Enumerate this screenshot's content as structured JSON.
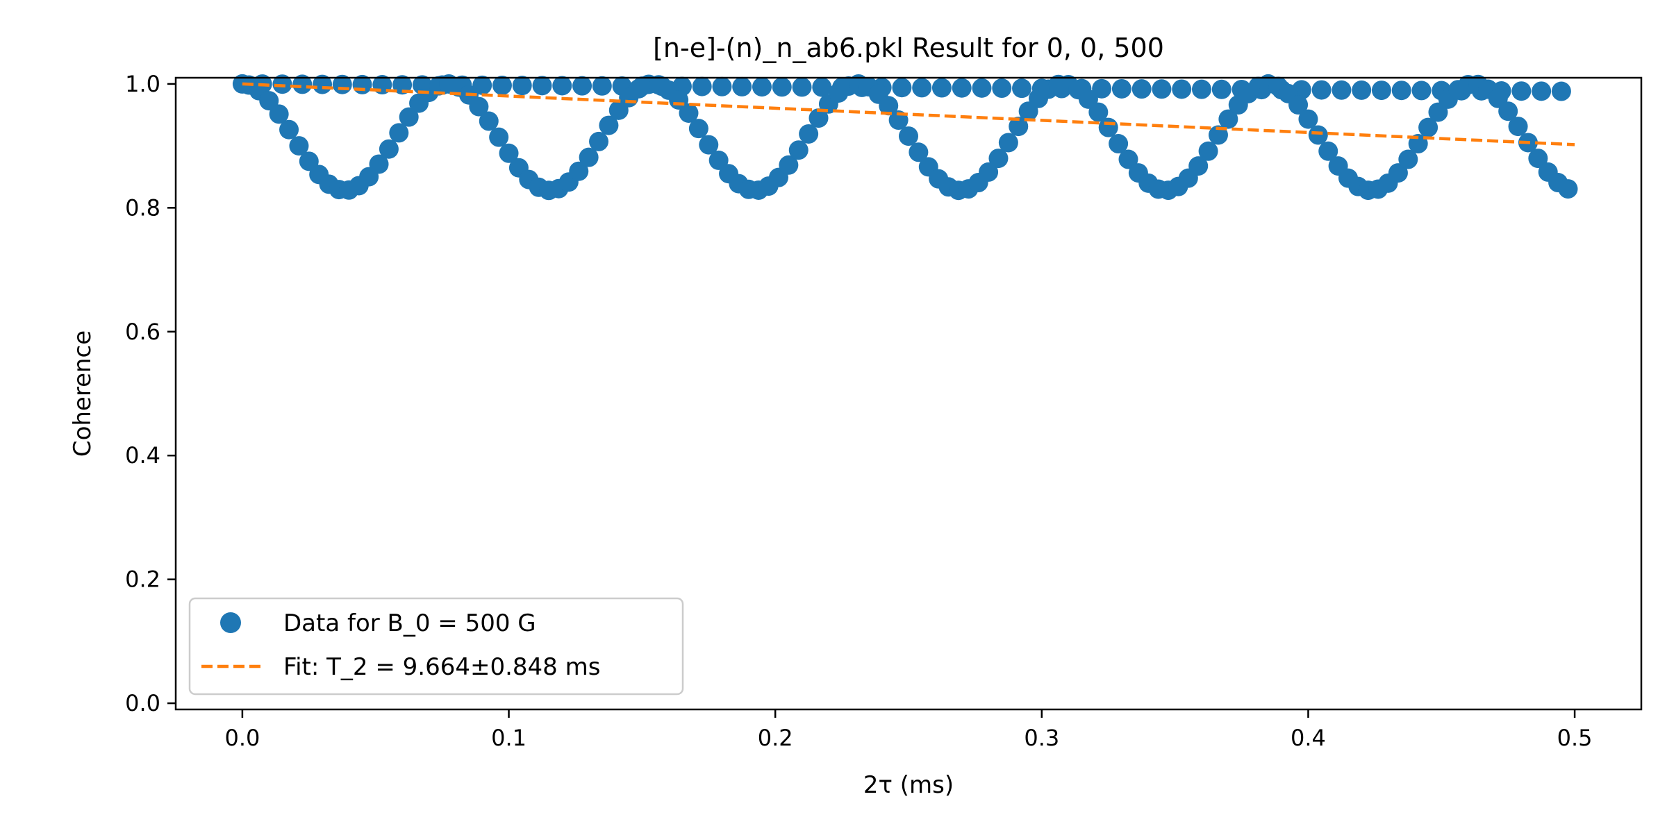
{
  "chart_data": {
    "type": "scatter",
    "title": "[n-e]-(n)_n_ab6.pkl Result for 0, 0, 500",
    "xlabel": "2τ (ms)",
    "ylabel": "Coherence",
    "xlim": [
      -0.025,
      0.525
    ],
    "ylim": [
      -0.01,
      1.01
    ],
    "xticks": [
      "0.0",
      "0.1",
      "0.2",
      "0.3",
      "0.4",
      "0.5"
    ],
    "yticks": [
      "0.0",
      "0.2",
      "0.4",
      "0.6",
      "0.8",
      "1.0"
    ],
    "grid": false,
    "legend_position": "lower-left",
    "series": [
      {
        "name": "Data for B_0 = 500 G",
        "kind": "scatter",
        "color": "#1f77b4",
        "description": "Two point branches: an upper branch near 1.0 and an oscillating branch with period ~0.077 ms between ~0.83 and ~1.0",
        "upper_branch": {
          "x_start": 0.0,
          "x_end": 0.5,
          "step": 0.0075,
          "y_start": 1.0,
          "y_end": 0.988
        },
        "oscillating_branch": {
          "x_start": 0.0025,
          "x_end": 0.5,
          "step": 0.00375,
          "period": 0.077,
          "y_max": 1.0,
          "y_min": 0.828
        }
      },
      {
        "name": "Fit: T_2 = 9.664±0.848 ms",
        "kind": "line",
        "style": "dashed",
        "color": "#ff7f0e",
        "x": [
          0.0,
          0.5
        ],
        "y": [
          1.0,
          0.902
        ]
      }
    ]
  }
}
